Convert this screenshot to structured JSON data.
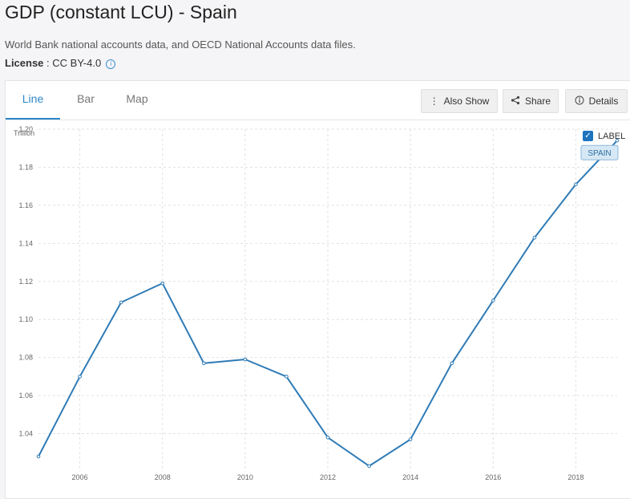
{
  "page": {
    "title": "GDP (constant LCU) - Spain",
    "source": "World Bank national accounts data, and OECD National Accounts data files.",
    "license_label": "License",
    "license_value": " : CC BY-4.0"
  },
  "tabs": [
    {
      "label": "Line"
    },
    {
      "label": "Bar"
    },
    {
      "label": "Map"
    }
  ],
  "toolbar": {
    "also_show": "Also Show",
    "share": "Share",
    "details": "Details"
  },
  "label_toggle": {
    "label": "LABEL",
    "checked": true
  },
  "icons": [
    "info-icon",
    "kebab-icon",
    "share-icon",
    "details-icon",
    "check-icon"
  ],
  "colors": {
    "accent": "#2e86c8",
    "line": "#2f7bb6"
  },
  "chart_data": {
    "type": "line",
    "title": "",
    "xlabel": "",
    "ylabel": "Trillion",
    "x": [
      2005,
      2006,
      2007,
      2008,
      2009,
      2010,
      2011,
      2012,
      2013,
      2014,
      2015,
      2016,
      2017,
      2018,
      2019
    ],
    "series": [
      {
        "name": "SPAIN",
        "values": [
          1.028,
          1.07,
          1.109,
          1.119,
          1.077,
          1.079,
          1.07,
          1.038,
          1.023,
          1.037,
          1.077,
          1.11,
          1.143,
          1.171,
          1.194
        ]
      }
    ],
    "xticks": [
      2006,
      2008,
      2010,
      2012,
      2014,
      2016,
      2018
    ],
    "yticks": [
      1.04,
      1.06,
      1.08,
      1.1,
      1.12,
      1.14,
      1.16,
      1.18,
      1.2
    ],
    "ytick_labels": [
      "1.04",
      "1.06",
      "1.08",
      "1.10",
      "1.12",
      "1.14",
      "1.16",
      "1.18",
      "1.20"
    ],
    "ylim": [
      1.02,
      1.2
    ],
    "xlim": [
      2005,
      2019
    ],
    "grid": true,
    "series_label": "SPAIN"
  }
}
